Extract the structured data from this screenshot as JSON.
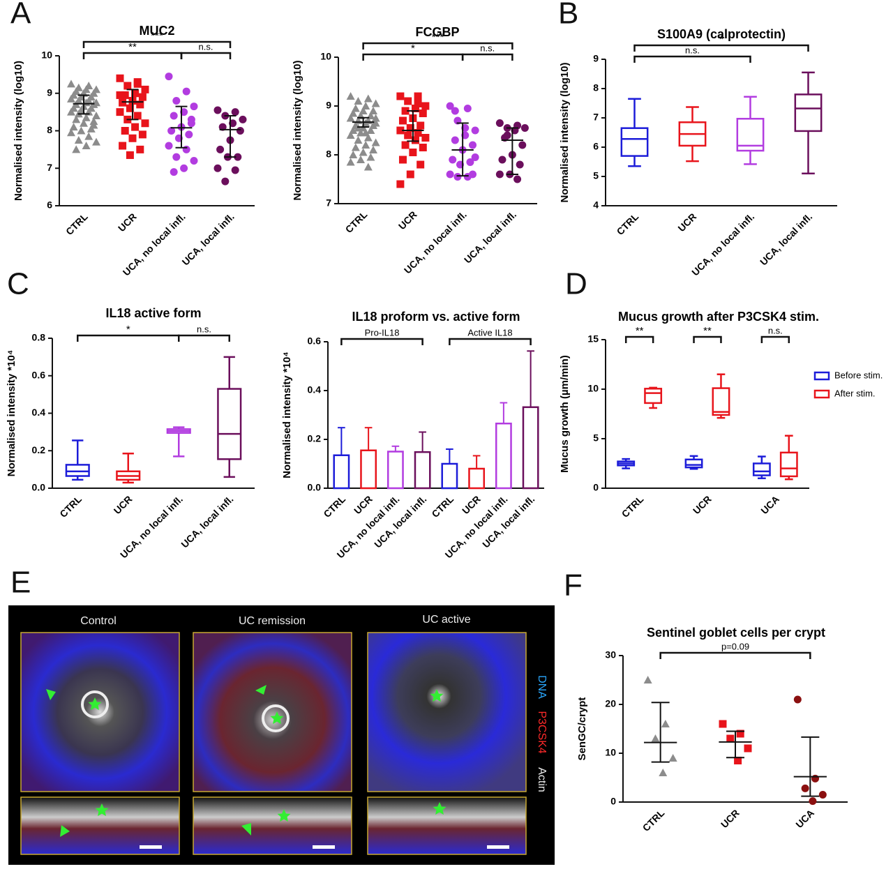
{
  "chart_data": [
    {
      "type": "dot",
      "panel": "A",
      "title": "MUC2",
      "y_label": "Normalised intensity (log10)",
      "categories": [
        "CTRL",
        "UCR",
        "UCA, no local infl.",
        "UCA, local infl."
      ],
      "ylim": [
        6,
        10
      ],
      "yticks": [
        6,
        7,
        8,
        9,
        10
      ],
      "groups": [
        {
          "color": "#8c8c8c",
          "marker": "triangle",
          "center": 8.72,
          "whisker": [
            8.45,
            8.95
          ],
          "points": [
            9.25,
            9.2,
            9.15,
            9.1,
            9.1,
            9.05,
            9.0,
            9.0,
            8.95,
            8.9,
            8.9,
            8.85,
            8.8,
            8.8,
            8.75,
            8.75,
            8.7,
            8.7,
            8.65,
            8.6,
            8.6,
            8.55,
            8.5,
            8.5,
            8.45,
            8.4,
            8.35,
            8.3,
            8.25,
            8.2,
            8.1,
            8.05,
            8.0,
            7.95,
            7.85,
            7.75,
            7.7,
            7.6,
            7.5,
            8.15
          ]
        },
        {
          "color": "#e8141b",
          "marker": "square",
          "center": 8.77,
          "whisker": [
            8.3,
            9.1
          ],
          "points": [
            9.4,
            9.3,
            9.2,
            9.1,
            9.0,
            8.95,
            8.9,
            8.8,
            8.75,
            8.7,
            8.6,
            8.5,
            8.4,
            8.3,
            8.2,
            8.1,
            8.0,
            7.9,
            7.8,
            7.6,
            7.5,
            7.35,
            8.95,
            9.25
          ]
        },
        {
          "color": "#b23ce0",
          "marker": "circle",
          "center": 8.08,
          "whisker": [
            7.55,
            8.65
          ],
          "points": [
            9.45,
            9.05,
            8.8,
            8.65,
            8.5,
            8.4,
            8.2,
            8.1,
            8.0,
            7.9,
            7.8,
            7.6,
            7.5,
            7.3,
            7.2,
            7.0,
            6.9,
            8.3
          ]
        },
        {
          "color": "#6b0f5c",
          "marker": "circle",
          "center": 8.03,
          "whisker": [
            7.3,
            8.4
          ],
          "points": [
            8.55,
            8.5,
            8.4,
            8.3,
            8.2,
            8.1,
            8.0,
            7.75,
            7.5,
            7.3,
            7.3,
            7.0,
            6.95,
            6.65
          ]
        }
      ],
      "brackets": [
        {
          "from": 0,
          "to": 2,
          "label": "**"
        },
        {
          "from": 2,
          "to": 3,
          "label": "n.s."
        },
        {
          "from": 0,
          "to": 3,
          "label": "***"
        }
      ]
    },
    {
      "type": "dot",
      "title": "FCGBP",
      "y_label": "Normalised intensity (log10)",
      "categories": [
        "CTRL",
        "UCR",
        "UCA, no local infl.",
        "UCA, local infl."
      ],
      "ylim": [
        7,
        10
      ],
      "yticks": [
        7,
        8,
        9,
        10
      ],
      "groups": [
        {
          "color": "#8c8c8c",
          "marker": "triangle",
          "center": 8.67,
          "whisker": [
            8.57,
            8.76
          ],
          "points": [
            9.2,
            9.15,
            9.1,
            9.05,
            9.0,
            8.95,
            8.9,
            8.9,
            8.85,
            8.8,
            8.8,
            8.75,
            8.7,
            8.7,
            8.65,
            8.65,
            8.6,
            8.6,
            8.55,
            8.5,
            8.5,
            8.45,
            8.4,
            8.35,
            8.3,
            8.25,
            8.2,
            8.15,
            8.1,
            8.05,
            8.0,
            7.95,
            7.9,
            7.85,
            7.75,
            8.55,
            8.75,
            8.45
          ]
        },
        {
          "color": "#e8141b",
          "marker": "square",
          "center": 8.5,
          "whisker": [
            8.28,
            8.9
          ],
          "points": [
            9.2,
            9.2,
            9.1,
            9.0,
            8.95,
            8.9,
            8.85,
            8.75,
            8.7,
            8.6,
            8.55,
            8.5,
            8.45,
            8.4,
            8.35,
            8.3,
            8.2,
            8.15,
            8.05,
            7.9,
            7.8,
            7.6,
            7.4,
            9.05
          ]
        },
        {
          "color": "#b23ce0",
          "marker": "circle",
          "center": 8.1,
          "whisker": [
            7.57,
            8.65
          ],
          "points": [
            9.0,
            8.95,
            8.7,
            8.5,
            8.4,
            8.3,
            8.2,
            8.1,
            7.9,
            7.85,
            7.8,
            7.6,
            7.55,
            7.55,
            7.95,
            8.55,
            8.9,
            7.6
          ]
        },
        {
          "color": "#6b0f5c",
          "marker": "circle",
          "center": 8.3,
          "whisker": [
            7.6,
            8.55
          ],
          "points": [
            8.65,
            8.6,
            8.55,
            8.55,
            8.5,
            8.35,
            8.2,
            8.0,
            7.9,
            7.8,
            7.6,
            7.6,
            7.5,
            8.4
          ]
        }
      ],
      "brackets": [
        {
          "from": 0,
          "to": 2,
          "label": "*"
        },
        {
          "from": 2,
          "to": 3,
          "label": "n.s."
        },
        {
          "from": 0,
          "to": 3,
          "label": "***"
        }
      ]
    },
    {
      "type": "box",
      "panel": "B",
      "title": "S100A9 (calprotectin)",
      "y_label": "Normalised intensity (log10)",
      "categories": [
        "CTRL",
        "UCR",
        "UCA, no local infl.",
        "UCA, local infl."
      ],
      "ylim": [
        4,
        9
      ],
      "yticks": [
        4,
        5,
        6,
        7,
        8,
        9
      ],
      "boxes": [
        {
          "color": "#1c1cd9",
          "stats": [
            5.35,
            5.7,
            6.28,
            6.65,
            7.65
          ]
        },
        {
          "color": "#e8141b",
          "stats": [
            5.52,
            6.05,
            6.45,
            6.85,
            7.37
          ]
        },
        {
          "color": "#b23ce0",
          "stats": [
            5.42,
            5.88,
            6.05,
            6.97,
            7.72
          ]
        },
        {
          "color": "#6b0f5c",
          "stats": [
            5.1,
            6.55,
            7.32,
            7.8,
            8.55
          ]
        }
      ],
      "brackets": [
        {
          "from": 0,
          "to": 2,
          "label": "n.s."
        },
        {
          "from": 0,
          "to": 3,
          "label": "*"
        }
      ]
    },
    {
      "type": "box",
      "panel": "C",
      "title": "IL18 active form",
      "y_label": "Normalised intensity *10⁴",
      "categories": [
        "CTRL",
        "UCR",
        "UCA, no local infl.",
        "UCA, local infl."
      ],
      "ylim": [
        0,
        0.8
      ],
      "yticks": [
        {
          "value": 0,
          "label": "0.0"
        },
        0.2,
        0.4,
        0.6,
        0.8
      ],
      "boxes": [
        {
          "color": "#1c1cd9",
          "stats": [
            0.045,
            0.065,
            0.09,
            0.125,
            0.255
          ]
        },
        {
          "color": "#e8141b",
          "stats": [
            0.03,
            0.045,
            0.065,
            0.09,
            0.185
          ]
        },
        {
          "color": "#b23ce0",
          "stats": [
            0.17,
            0.295,
            0.305,
            0.315,
            0.325
          ]
        },
        {
          "color": "#6b0f5c",
          "stats": [
            0.06,
            0.155,
            0.29,
            0.53,
            0.7
          ]
        }
      ],
      "brackets": [
        {
          "from": 0,
          "to": 2,
          "label": "*"
        },
        {
          "from": 2,
          "to": 3,
          "label": "n.s."
        }
      ]
    },
    {
      "type": "bar",
      "title": "IL18 proform vs. active form",
      "y_label": "Normalised intensity *10⁴",
      "categories": [
        "CTRL",
        "UCR",
        "UCA, no local infl.",
        "UCA, local infl.",
        "CTRL",
        "UCR",
        "UCA, no local infl.",
        "UCA, local infl."
      ],
      "ylim": [
        0,
        0.6
      ],
      "yticks": [
        {
          "value": 0,
          "label": "0.0"
        },
        0.2,
        0.4,
        0.6
      ],
      "values": [
        0.135,
        0.155,
        0.15,
        0.148,
        0.1,
        0.08,
        0.265,
        0.332
      ],
      "errors": [
        0.113,
        0.093,
        0.022,
        0.082,
        0.06,
        0.053,
        0.085,
        0.23
      ],
      "colors": [
        "#1c1cd9",
        "#e8141b",
        "#b23ce0",
        "#6b0f5c",
        "#1c1cd9",
        "#e8141b",
        "#b23ce0",
        "#6b0f5c"
      ],
      "brackets": [
        {
          "from": 0,
          "to": 3,
          "label": "Pro-IL18"
        },
        {
          "from": 4,
          "to": 7,
          "label": "Active IL18"
        }
      ]
    },
    {
      "type": "box",
      "panel": "D",
      "title": "Mucus growth after P3CSK4 stim.",
      "y_label": "Mucus growth (µm/min)",
      "categories": [
        "CTRL",
        "UCR",
        "UCA"
      ],
      "ylim": [
        0,
        15
      ],
      "yticks": [
        0,
        5,
        10,
        15
      ],
      "legend": "right",
      "series": [
        {
          "name": "Before stim.",
          "color": "#1c1cd9",
          "boxes": [
            [
              2.0,
              2.3,
              2.5,
              2.7,
              2.95
            ],
            [
              1.95,
              2.1,
              2.35,
              2.9,
              3.25
            ],
            [
              1.0,
              1.3,
              1.7,
              2.5,
              3.2
            ]
          ]
        },
        {
          "name": "After stim.",
          "color": "#e8141b",
          "boxes": [
            [
              8.1,
              8.6,
              9.6,
              10.05,
              10.15
            ],
            [
              7.1,
              7.4,
              7.7,
              10.1,
              11.5
            ],
            [
              0.9,
              1.2,
              2.0,
              3.6,
              5.3
            ]
          ]
        }
      ],
      "brackets": [
        {
          "category": 0,
          "label": "**"
        },
        {
          "category": 1,
          "label": "**"
        },
        {
          "category": 2,
          "label": "n.s."
        }
      ]
    },
    {
      "type": "dot",
      "panel": "F",
      "title": "Sentinel goblet cells per crypt",
      "y_label": "SenGC/crypt",
      "categories": [
        "CTRL",
        "UCR",
        "UCA"
      ],
      "ylim": [
        0,
        30
      ],
      "yticks": [
        0,
        10,
        20,
        30
      ],
      "groups": [
        {
          "color": "#8c8c8c",
          "marker": "triangle",
          "center": 12.2,
          "whisker": [
            8.2,
            20.4
          ],
          "points": [
            25,
            16,
            13,
            9,
            6
          ]
        },
        {
          "color": "#e8141b",
          "marker": "square",
          "center": 12.3,
          "whisker": [
            9.1,
            14.5
          ],
          "points": [
            16,
            14,
            13,
            11,
            8.5
          ]
        },
        {
          "color": "#8b1010",
          "marker": "circle",
          "center": 5.2,
          "whisker": [
            1.2,
            13.3
          ],
          "points": [
            21,
            4.8,
            2.8,
            1.5,
            0.2
          ]
        }
      ],
      "brackets": [
        {
          "from": 0,
          "to": 2,
          "label": "p=0.09"
        }
      ]
    }
  ],
  "image_panel": {
    "panel": "E",
    "titles": [
      "Control",
      "UC remission",
      "UC active"
    ],
    "channels": [
      "DNA",
      "P3CSK4",
      "Actin"
    ]
  }
}
